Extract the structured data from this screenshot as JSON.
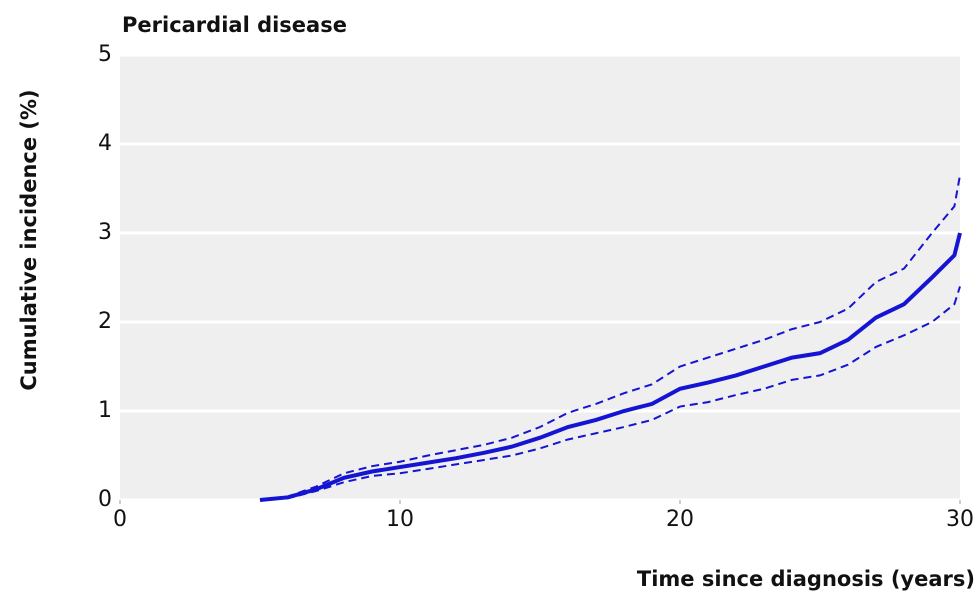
{
  "chart_data": {
    "type": "line",
    "title": "Pericardial disease",
    "xlabel": "Time since diagnosis (years)",
    "ylabel": "Cumulative incidence (%)",
    "x": [
      5,
      6,
      7,
      8,
      9,
      10,
      11,
      12,
      13,
      14,
      15,
      16,
      17,
      18,
      19,
      20,
      21,
      22,
      23,
      24,
      25,
      26,
      27,
      28,
      29,
      29.8,
      30
    ],
    "series": [
      {
        "color": "#1414d2",
        "dashed": false,
        "values": [
          0,
          0.03,
          0.12,
          0.25,
          0.32,
          0.37,
          0.42,
          0.47,
          0.53,
          0.6,
          0.7,
          0.82,
          0.9,
          1.0,
          1.08,
          1.25,
          1.32,
          1.4,
          1.5,
          1.6,
          1.65,
          1.8,
          2.05,
          2.2,
          2.5,
          2.75,
          3.0
        ]
      },
      {
        "color": "#1414d2",
        "dashed": true,
        "values": [
          0,
          0.02,
          0.1,
          0.2,
          0.27,
          0.3,
          0.35,
          0.4,
          0.45,
          0.5,
          0.58,
          0.68,
          0.75,
          0.82,
          0.9,
          1.05,
          1.1,
          1.18,
          1.25,
          1.35,
          1.4,
          1.52,
          1.72,
          1.85,
          2.0,
          2.2,
          2.4
        ]
      },
      {
        "color": "#1414d2",
        "dashed": true,
        "values": [
          0,
          0.04,
          0.15,
          0.3,
          0.38,
          0.43,
          0.5,
          0.56,
          0.62,
          0.7,
          0.82,
          0.98,
          1.08,
          1.2,
          1.3,
          1.5,
          1.6,
          1.7,
          1.8,
          1.92,
          2.0,
          2.15,
          2.45,
          2.6,
          3.0,
          3.3,
          3.65
        ]
      }
    ],
    "xlim": [
      0,
      30
    ],
    "xticks": [
      0,
      10,
      20,
      30
    ],
    "ylim": [
      0,
      5
    ],
    "yticks": [
      0,
      1,
      2,
      3,
      4,
      5
    ],
    "grid": true
  }
}
